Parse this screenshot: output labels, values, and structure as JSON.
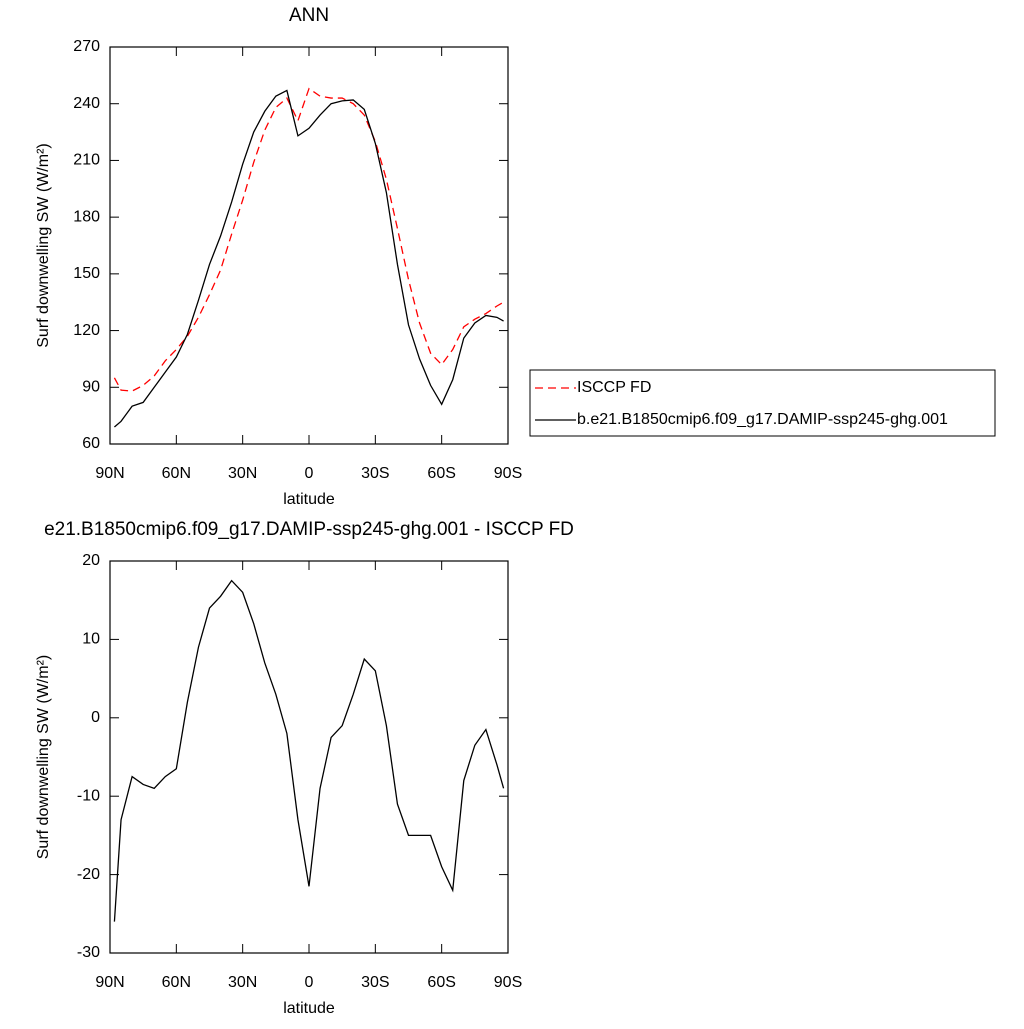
{
  "chart_data": [
    {
      "type": "line",
      "title": "ANN",
      "xlabel": "latitude",
      "ylabel": "Surf downwelling SW (W/m²)",
      "x": [
        88,
        85,
        80,
        75,
        70,
        65,
        60,
        55,
        50,
        45,
        40,
        35,
        30,
        25,
        20,
        15,
        10,
        5,
        0,
        -5,
        -10,
        -15,
        -20,
        -25,
        -30,
        -35,
        -40,
        -45,
        -50,
        -55,
        -60,
        -65,
        -70,
        -75,
        -80,
        -85,
        -88
      ],
      "xlim": [
        90,
        -90
      ],
      "xticks": [
        {
          "value": 90,
          "label": "90N"
        },
        {
          "value": 60,
          "label": "60N"
        },
        {
          "value": 30,
          "label": "30N"
        },
        0,
        {
          "value": -30,
          "label": "30S"
        },
        {
          "value": -60,
          "label": "60S"
        },
        {
          "value": -90,
          "label": "90S"
        }
      ],
      "ylim": [
        60,
        270
      ],
      "yticks": [
        60,
        90,
        120,
        150,
        180,
        210,
        240,
        270
      ],
      "legend": "outside right",
      "series": [
        {
          "name": "ISCCP FD",
          "color": "#ff0000",
          "linestyle": "dashed",
          "values": [
            95,
            88.5,
            88,
            91,
            96,
            104,
            110,
            117,
            127,
            139,
            152,
            171,
            189,
            209,
            226,
            238,
            243,
            231,
            248,
            244,
            243,
            243,
            240,
            234,
            220,
            200,
            174,
            147,
            124,
            108,
            102,
            110,
            122,
            126,
            129,
            133,
            135
          ]
        },
        {
          "name": "b.e21.B1850cmip6.f09_g17.DAMIP-ssp245-ghg.001",
          "color": "#000000",
          "linestyle": "solid",
          "values": [
            69,
            72,
            80,
            82,
            90,
            98,
            106,
            118,
            136,
            155,
            170,
            188,
            208,
            225,
            236,
            244,
            247,
            223,
            227,
            234,
            240,
            241.5,
            242,
            237,
            219,
            193,
            155,
            123,
            105,
            91,
            81,
            94,
            116,
            124,
            128,
            127,
            125
          ]
        }
      ]
    },
    {
      "type": "line",
      "title": "e21.B1850cmip6.f09_g17.DAMIP-ssp245-ghg.001 - ISCCP FD",
      "xlabel": "latitude",
      "ylabel": "Surf downwelling SW (W/m²)",
      "x": [
        88,
        85,
        80,
        75,
        70,
        65,
        60,
        55,
        50,
        45,
        40,
        35,
        30,
        25,
        20,
        15,
        10,
        5,
        0,
        -5,
        -10,
        -15,
        -20,
        -25,
        -30,
        -35,
        -40,
        -45,
        -50,
        -55,
        -60,
        -65,
        -70,
        -75,
        -80,
        -85,
        -88
      ],
      "xlim": [
        90,
        -90
      ],
      "xticks": [
        {
          "value": 90,
          "label": "90N"
        },
        {
          "value": 60,
          "label": "60N"
        },
        {
          "value": 30,
          "label": "30N"
        },
        0,
        {
          "value": -30,
          "label": "30S"
        },
        {
          "value": -60,
          "label": "60S"
        },
        {
          "value": -90,
          "label": "90S"
        }
      ],
      "ylim": [
        -30,
        20
      ],
      "yticks": [
        -30,
        -20,
        -10,
        0,
        10,
        20
      ],
      "series": [
        {
          "color": "#000000",
          "linestyle": "solid",
          "values": [
            -26,
            -13,
            -7.5,
            -8.5,
            -9,
            -7.5,
            -6.5,
            2,
            9,
            14,
            15.5,
            17.5,
            16,
            12,
            7,
            3,
            -2,
            -13,
            -21.5,
            -9,
            -2.5,
            -1,
            3,
            7.5,
            6,
            -1,
            -11,
            -15,
            -15,
            -15,
            -19,
            -22,
            -8,
            -3.5,
            -1.5,
            -6,
            -9
          ]
        }
      ]
    }
  ]
}
